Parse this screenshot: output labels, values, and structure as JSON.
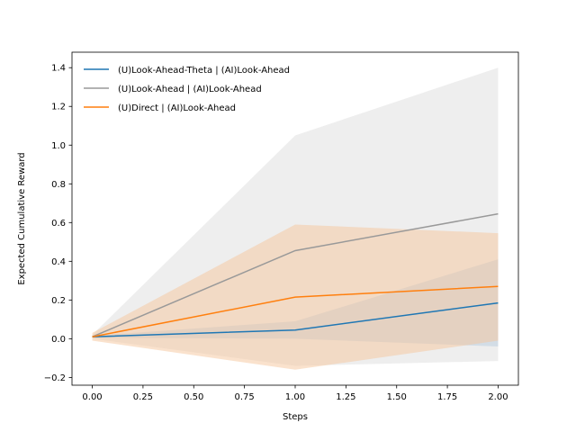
{
  "chart_data": {
    "type": "line",
    "title": "",
    "xlabel": "Steps",
    "ylabel": "Expected Cumulative Reward",
    "xlim": [
      -0.1,
      2.1
    ],
    "ylim": [
      -0.24,
      1.48
    ],
    "xticks": [
      0.0,
      0.25,
      0.5,
      0.75,
      1.0,
      1.25,
      1.5,
      1.75,
      2.0
    ],
    "xtick_labels": [
      "0.00",
      "0.25",
      "0.50",
      "0.75",
      "1.00",
      "1.25",
      "1.50",
      "1.75",
      "2.00"
    ],
    "yticks": [
      -0.2,
      0.0,
      0.2,
      0.4,
      0.6,
      0.8,
      1.0,
      1.2,
      1.4
    ],
    "ytick_labels": [
      "−0.2",
      "0.0",
      "0.2",
      "0.4",
      "0.6",
      "0.8",
      "1.0",
      "1.2",
      "1.4"
    ],
    "grid": false,
    "legend_position": "top-left",
    "x": [
      0,
      1,
      2
    ],
    "series": [
      {
        "name": "(U)Look-Ahead | (AI)Look-Ahead",
        "values": [
          0.01,
          0.455,
          0.645
        ],
        "lower": [
          0.0,
          -0.14,
          -0.115
        ],
        "upper": [
          0.02,
          1.05,
          1.4
        ],
        "color": "#999999",
        "band_color": "#dddddd",
        "band_opacity": 0.5
      },
      {
        "name": "(U)Look-Ahead-Theta | (AI)Look-Ahead",
        "values": [
          0.01,
          0.045,
          0.185
        ],
        "lower": [
          0.005,
          0.0,
          -0.04
        ],
        "upper": [
          0.015,
          0.09,
          0.41
        ],
        "color": "#1f77b4",
        "band_color": "#a9c3d9",
        "band_opacity": 0.4
      },
      {
        "name": "(U)Direct | (AI)Look-Ahead",
        "values": [
          0.01,
          0.215,
          0.27
        ],
        "lower": [
          -0.01,
          -0.16,
          -0.01
        ],
        "upper": [
          0.03,
          0.59,
          0.545
        ],
        "color": "#ff7f0e",
        "band_color": "#f5c59b",
        "band_opacity": 0.5
      }
    ],
    "legend_order": [
      1,
      0,
      2
    ]
  }
}
